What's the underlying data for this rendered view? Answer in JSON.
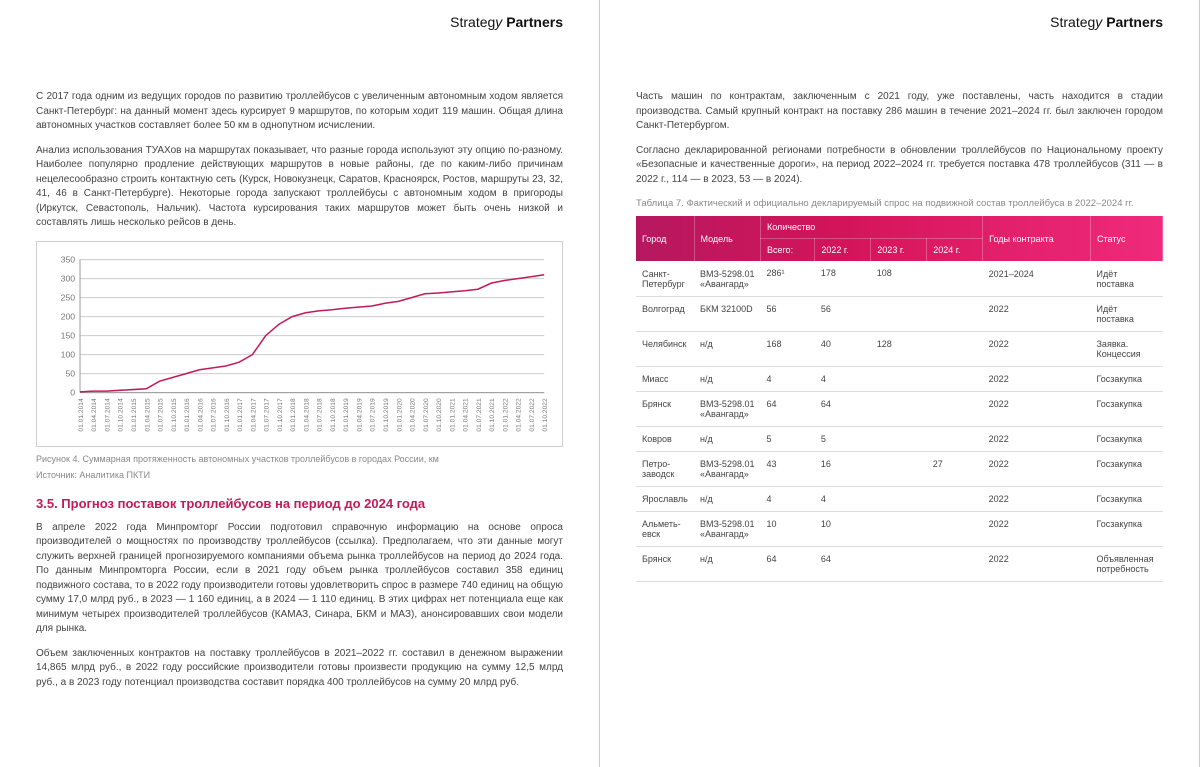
{
  "brand_html": "Strateg<span style='font-style:italic'>y</span> <b>Partners</b>",
  "left": {
    "p1": "С 2017 года одним из ведущих городов по развитию троллейбусов с увеличенным автономным ходом является Санкт-Петербург: на данный момент здесь курсирует 9 маршрутов, по которым ходит 119 машин. Общая длина автономных участков составляет более 50 км в однопутном исчислении.",
    "p2": "Анализ использования ТУАХов на маршрутах показывает, что разные города используют эту опцию по-разному. Наиболее популярно продление действующих маршрутов в новые районы, где по каким-либо причинам нецелесообразно строить контактную сеть (Курск, Новокузнецк, Саратов, Красноярск, Ростов, маршруты 23, 32, 41, 46 в Санкт-Петербурге). Некоторые города запускают троллейбусы с автономным ходом в пригороды (Иркутск, Севастополь, Нальчик). Частота курсирования таких маршрутов может быть очень низкой и составлять лишь несколько рейсов в день.",
    "caption_fig": "Рисунок 4. Суммарная протяженность автономных участков троллейбусов в городах России, км",
    "caption_src": "Источник: Аналитика ПКТИ",
    "h3": "3.5. Прогноз поставок троллейбусов на период до 2024 года",
    "p3": "В апреле 2022 года Минпромторг России подготовил справочную информацию на основе опроса производителей о мощностях по производству троллейбусов (ссылка). Предполагаем, что эти данные могут служить верхней границей прогнозируемого компаниями объема рынка троллейбусов на период до 2024 года. По данным Минпромторга России, если в 2021 году объем рынка троллейбусов составил 358 единиц подвижного состава, то в 2022 году производители готовы удовлетворить спрос в размере 740 единиц на общую сумму 17,0 млрд руб., в 2023 — 1 160 единиц, а в 2024 — 1 110 единиц. В этих цифрах нет потенциала еще как минимум четырех производителей троллейбусов (КАМАЗ, Синара, БКМ и МАЗ), анонсировавших свои модели для рынка.",
    "p4": "Объем заключенных контрактов на поставку троллейбусов в 2021–2022 гг. составил в денежном выражении 14,865 млрд руб., в 2022 году российские производители готовы произвести продукцию на сумму 12,5 млрд руб., а в 2023 году потенциал производства составит порядка 400 троллейбусов на сумму 20 млрд руб.",
    "chart": {
      "type": "line",
      "ylim": [
        0,
        350
      ],
      "ytick_step": 50,
      "y_ticks": [
        0,
        50,
        100,
        150,
        200,
        250,
        300,
        350
      ],
      "x_labels": [
        "01.01.2014",
        "01.04.2014",
        "01.07.2014",
        "01.10.2014",
        "01.01.2015",
        "01.04.2015",
        "01.07.2015",
        "01.10.2015",
        "01.01.2016",
        "01.04.2016",
        "01.07.2016",
        "01.10.2016",
        "01.01.2017",
        "01.04.2017",
        "01.07.2017",
        "01.10.2017",
        "01.01.2018",
        "01.04.2018",
        "01.07.2018",
        "01.10.2018",
        "01.01.2019",
        "01.04.2019",
        "01.07.2019",
        "01.10.2019",
        "01.01.2020",
        "01.04.2020",
        "01.07.2020",
        "01.10.2020",
        "01.01.2021",
        "01.04.2021",
        "01.07.2021",
        "01.10.2021",
        "01.01.2022",
        "01.04.2022",
        "01.07.2022",
        "01.10.2022"
      ],
      "values": [
        2,
        4,
        4,
        6,
        8,
        10,
        30,
        40,
        50,
        60,
        65,
        70,
        80,
        100,
        150,
        180,
        200,
        210,
        215,
        218,
        222,
        225,
        228,
        235,
        240,
        250,
        260,
        262,
        265,
        268,
        272,
        288,
        295,
        300,
        305,
        310
      ],
      "line_color": "#c31a5a",
      "grid_color": "#cccccc",
      "axis_color": "#999999",
      "bg": "#ffffff",
      "label_color": "#777777"
    }
  },
  "right": {
    "p1": "Часть машин по контрактам, заключенным с 2021 году, уже поставлены, часть находится в стадии производства. Самый крупный контракт на поставку 286 машин в течение 2021–2024 гг. был заключен городом Санкт-Петербургом.",
    "p2": "Согласно декларированной регионами потребности в обновлении троллейбусов по Национальному проекту «Безопасные и качественные дороги», на период 2022–2024 гг. требуется поставка 478 троллейбусов (311 — в 2022 г., 114 — в 2023, 53 — в 2024).",
    "table_caption": "Таблица 7. Фактический и официально декларируемый спрос на подвижной состав троллейбуса в 2022–2024 гг.",
    "headers": {
      "city": "Город",
      "model": "Модель",
      "qty": "Количество",
      "total": "Всего:",
      "y22": "2022 г.",
      "y23": "2023 г.",
      "y24": "2024 г.",
      "years": "Годы контракта",
      "status": "Статус"
    },
    "rows": [
      {
        "city": "Санкт-Петербург",
        "model": "ВМЗ-5298.01 «Авангард»",
        "total": "286¹",
        "y22": "178",
        "y23": "108",
        "y24": "",
        "years": "2021–2024",
        "status": "Идёт поставка"
      },
      {
        "city": "Волгоград",
        "model": "БКМ 32100D",
        "total": "56",
        "y22": "56",
        "y23": "",
        "y24": "",
        "years": "2022",
        "status": "Идёт поставка"
      },
      {
        "city": "Челябинск",
        "model": "н/д",
        "total": "168",
        "y22": "40",
        "y23": "128",
        "y24": "",
        "years": "2022",
        "status": "Заявка. Концессия"
      },
      {
        "city": "Миасс",
        "model": "н/д",
        "total": "4",
        "y22": "4",
        "y23": "",
        "y24": "",
        "years": "2022",
        "status": "Госзакупка"
      },
      {
        "city": "Брянск",
        "model": "ВМЗ-5298.01 «Авангард»",
        "total": "64",
        "y22": "64",
        "y23": "",
        "y24": "",
        "years": "2022",
        "status": "Госзакупка"
      },
      {
        "city": "Ковров",
        "model": "н/д",
        "total": "5",
        "y22": "5",
        "y23": "",
        "y24": "",
        "years": "2022",
        "status": "Госзакупка"
      },
      {
        "city": "Петро-заводск",
        "model": "ВМЗ-5298.01 «Авангард»",
        "total": "43",
        "y22": "16",
        "y23": "",
        "y24": "27",
        "years": "2022",
        "status": "Госзакупка"
      },
      {
        "city": "Ярославль",
        "model": "н/д",
        "total": "4",
        "y22": "4",
        "y23": "",
        "y24": "",
        "years": "2022",
        "status": "Госзакупка"
      },
      {
        "city": "Альметь-евск",
        "model": "ВМЗ-5298.01 «Авангард»",
        "total": "10",
        "y22": "10",
        "y23": "",
        "y24": "",
        "years": "2022",
        "status": "Госзакупка"
      },
      {
        "city": "Брянск",
        "model": "н/д",
        "total": "64",
        "y22": "64",
        "y23": "",
        "y24": "",
        "years": "2022",
        "status": "Объявленная потребность"
      }
    ]
  },
  "colors": {
    "accent": "#c31a5a",
    "header_grad_from": "#b6185f",
    "header_grad_to": "#ef2a7b"
  }
}
